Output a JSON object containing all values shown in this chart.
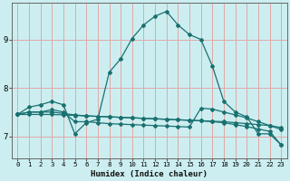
{
  "xlabel": "Humidex (Indice chaleur)",
  "background_color": "#cceef0",
  "grid_color": "#e0a8a8",
  "line_color": "#1a7070",
  "xlim": [
    -0.5,
    23.5
  ],
  "ylim": [
    6.55,
    9.75
  ],
  "yticks": [
    7,
    8,
    9
  ],
  "xticks": [
    0,
    1,
    2,
    3,
    4,
    5,
    6,
    7,
    8,
    9,
    10,
    11,
    12,
    13,
    14,
    15,
    16,
    17,
    18,
    19,
    20,
    21,
    22,
    23
  ],
  "curve1_x": [
    0,
    1,
    2,
    3,
    4,
    5,
    6,
    7,
    8,
    9,
    10,
    11,
    12,
    13,
    14,
    15,
    16,
    17,
    18,
    19,
    20,
    21,
    22,
    23
  ],
  "curve1_y": [
    7.45,
    7.6,
    7.65,
    7.72,
    7.65,
    7.05,
    7.28,
    7.35,
    8.32,
    8.6,
    9.02,
    9.3,
    9.48,
    9.58,
    9.3,
    9.1,
    9.0,
    8.45,
    7.72,
    7.5,
    7.4,
    7.05,
    7.05,
    6.82
  ],
  "curve2_x": [
    0,
    1,
    2,
    3,
    4,
    5,
    6,
    7,
    8,
    9,
    10,
    11,
    12,
    13,
    14,
    15,
    16,
    17,
    18,
    19,
    20,
    21,
    22,
    23
  ],
  "curve2_y": [
    7.45,
    7.5,
    7.5,
    7.55,
    7.5,
    7.3,
    7.3,
    7.28,
    7.26,
    7.25,
    7.24,
    7.23,
    7.22,
    7.21,
    7.2,
    7.19,
    7.58,
    7.56,
    7.5,
    7.44,
    7.38,
    7.3,
    7.22,
    7.14
  ],
  "curve3_x": [
    0,
    1,
    2,
    3,
    4,
    5,
    6,
    7,
    8,
    9,
    10,
    11,
    12,
    13,
    14,
    15,
    16,
    17,
    18,
    19,
    20,
    21,
    22,
    23
  ],
  "curve3_y": [
    7.45,
    7.5,
    7.5,
    7.5,
    7.47,
    7.44,
    7.42,
    7.41,
    7.4,
    7.39,
    7.38,
    7.37,
    7.36,
    7.35,
    7.34,
    7.33,
    7.32,
    7.31,
    7.3,
    7.28,
    7.26,
    7.24,
    7.22,
    7.18
  ],
  "curve4_x": [
    0,
    1,
    2,
    3,
    4,
    5,
    6,
    7,
    8,
    9,
    10,
    11,
    12,
    13,
    14,
    15,
    16,
    17,
    18,
    19,
    20,
    21,
    22,
    23
  ],
  "curve4_y": [
    7.45,
    7.45,
    7.45,
    7.45,
    7.44,
    7.43,
    7.42,
    7.41,
    7.4,
    7.39,
    7.38,
    7.37,
    7.36,
    7.35,
    7.34,
    7.33,
    7.32,
    7.3,
    7.28,
    7.24,
    7.2,
    7.15,
    7.1,
    6.82
  ]
}
